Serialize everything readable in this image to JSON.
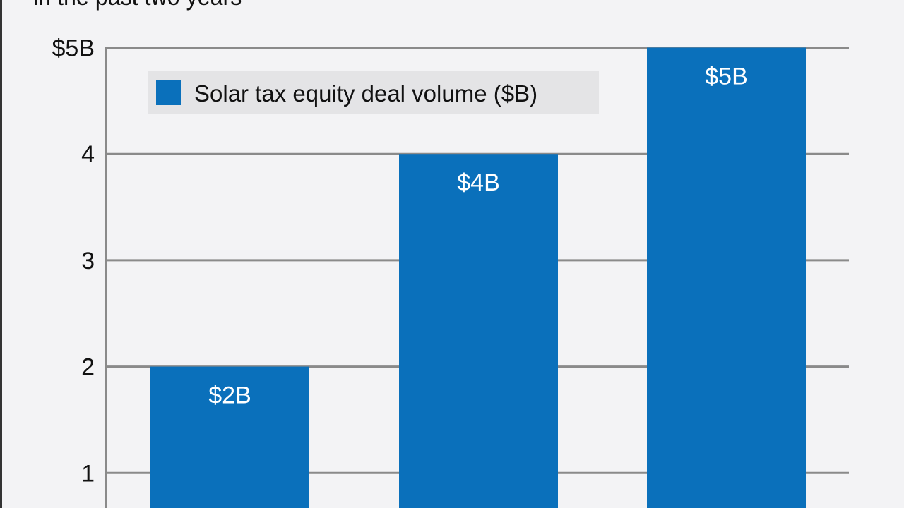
{
  "chart_data": {
    "type": "bar",
    "subtitle": "in the past two years",
    "categories": [
      "",
      "",
      ""
    ],
    "series": [
      {
        "name": "Solar tax equity deal volume ($B)",
        "values": [
          2,
          4,
          5
        ],
        "color": "#0a70bb"
      }
    ],
    "data_labels": [
      "$2B",
      "$4B",
      "$5B"
    ],
    "yticks": [
      {
        "value": 1,
        "label": "1"
      },
      {
        "value": 2,
        "label": "2"
      },
      {
        "value": 3,
        "label": "3"
      },
      {
        "value": 4,
        "label": "4"
      },
      {
        "value": 5,
        "label": "$5B"
      }
    ],
    "ylim": [
      0,
      5
    ],
    "grid": true,
    "legend": "top-left",
    "colors": {
      "bar": "#0a70bb",
      "grid": "#8a8a8a",
      "background": "#f3f3f5",
      "legend_bg": "#e4e4e6"
    }
  }
}
